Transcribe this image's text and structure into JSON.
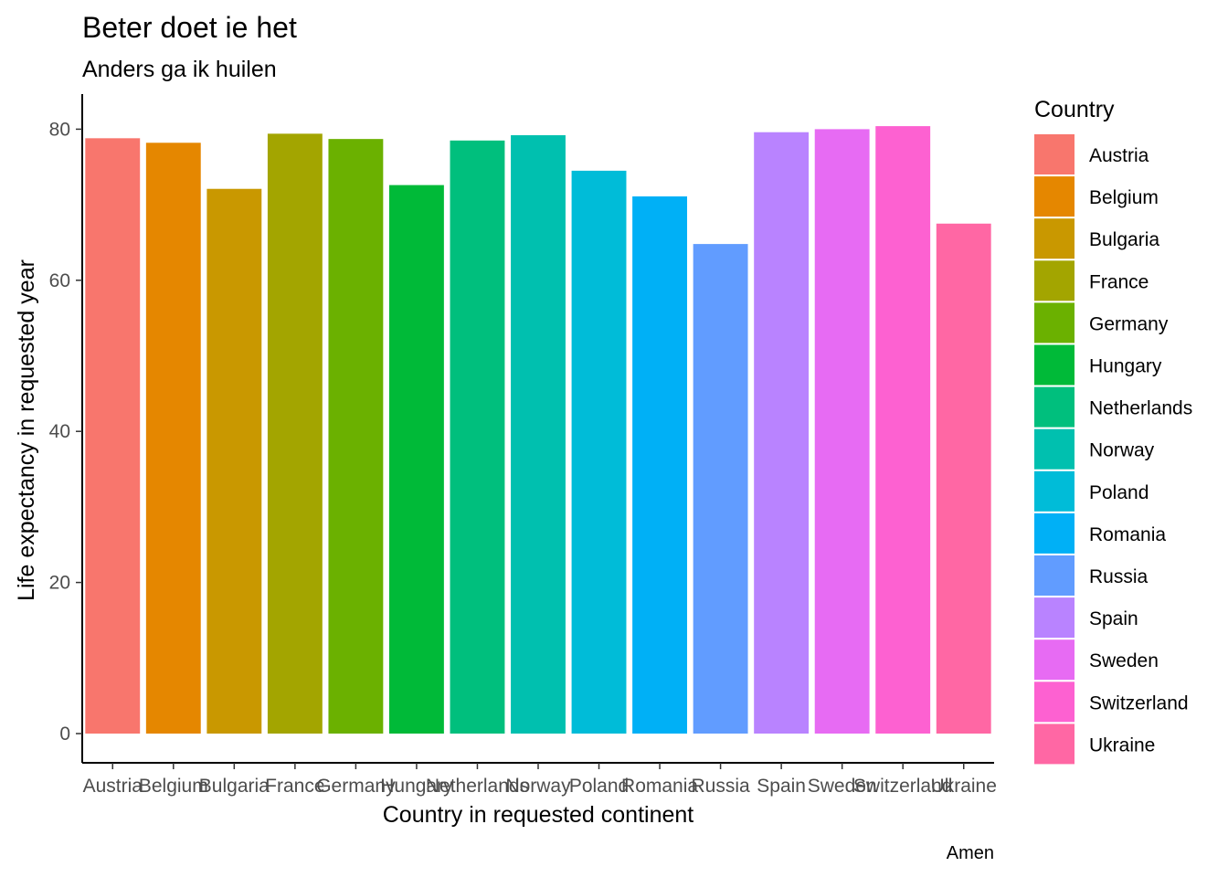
{
  "chart_data": {
    "type": "bar",
    "title": "Beter doet ie het",
    "subtitle": "Anders ga ik huilen",
    "xlabel": "Country in requested continent",
    "ylabel": "Life expectancy in requested year",
    "caption": "Amen",
    "categories": [
      "Austria",
      "Belgium",
      "Bulgaria",
      "France",
      "Germany",
      "Hungary",
      "Netherlands",
      "Norway",
      "Poland",
      "Romania",
      "Russia",
      "Spain",
      "Sweden",
      "Switzerland",
      "Ukraine"
    ],
    "values": [
      78.8,
      78.2,
      72.1,
      79.4,
      78.7,
      72.6,
      78.5,
      79.2,
      74.5,
      71.1,
      64.8,
      79.6,
      80.0,
      80.4,
      67.5
    ],
    "colors": [
      "#F8766D",
      "#E58700",
      "#C99800",
      "#A3A500",
      "#6BB100",
      "#00BA38",
      "#00BF7D",
      "#00C0AF",
      "#00BCD8",
      "#00B0F6",
      "#619CFF",
      "#B983FF",
      "#E76BF3",
      "#FD61D1",
      "#FF67A4"
    ],
    "ylim": [
      0,
      84.4
    ],
    "yticks": [
      0,
      20,
      40,
      60,
      80
    ],
    "grid": false,
    "legend": {
      "title": "Country",
      "placement": "right"
    }
  }
}
